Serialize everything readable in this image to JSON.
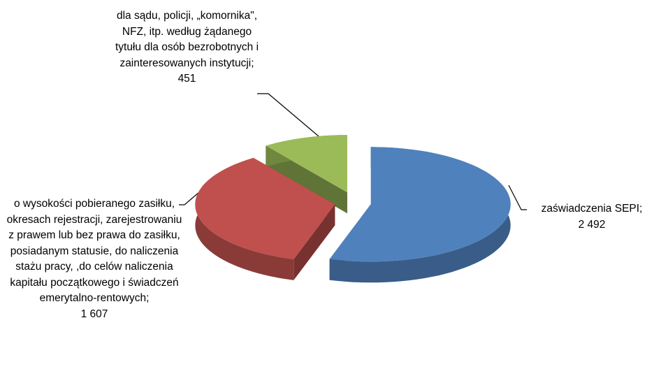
{
  "chart_data": {
    "type": "pie",
    "categories": [
      "zaświadczenia SEPI;",
      "o wysokości pobieranego zasiłku, okresach rejestracji, zarejestrowaniu z prawem lub bez prawa do zasiłku, posiadanym statusie, do naliczenia stażu pracy, ,do celów naliczenia kapitału początkowego i świadczeń emerytalno-rentowych;",
      "dla sądu, policji, „komornika\", NFZ, itp. według żądanego tytułu dla osób bezrobotnych i zainteresowanych instytucji;"
    ],
    "values": [
      2492,
      1607,
      451
    ],
    "value_labels": [
      "2 492",
      "1 607",
      "451"
    ],
    "colors": [
      "#4f81bd",
      "#c0504d",
      "#9bbb59"
    ]
  }
}
